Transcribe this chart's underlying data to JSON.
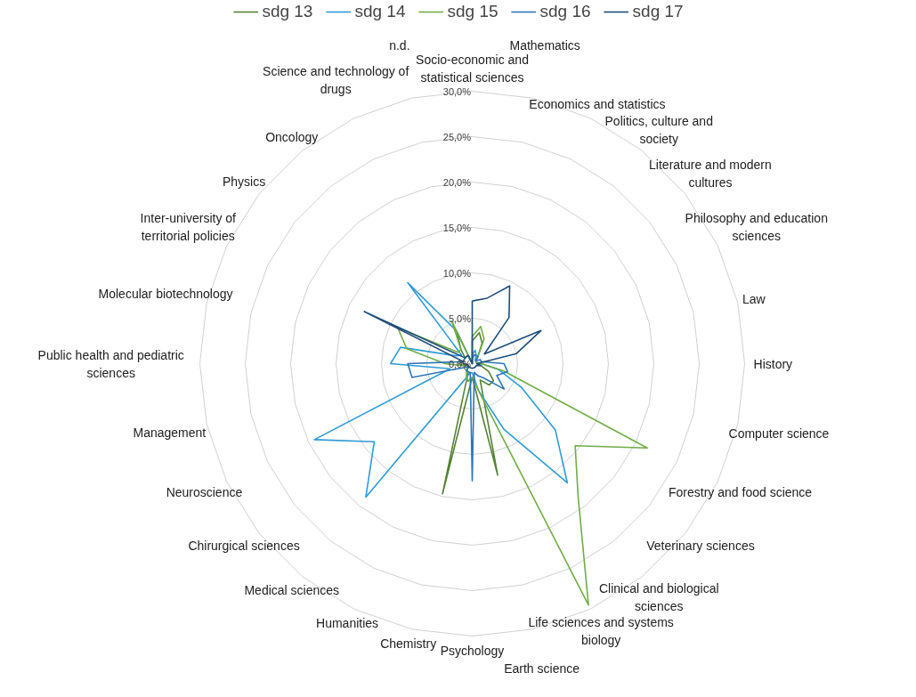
{
  "chart_data": {
    "type": "radar",
    "categories": [
      "Socio-economic and statistical sciences",
      "Mathematics",
      "Economics and statistics",
      "Politics, culture and society",
      "Literature and modern cultures",
      "Philosophy and education sciences",
      "Law",
      "History",
      "Computer science",
      "Forestry and food science",
      "Veterinary sciences",
      "Clinical and biological sciences",
      "Life sciences and systems biology",
      "Earth science",
      "Psychology",
      "Chemistry",
      "Humanities",
      "Medical sciences",
      "Chirurgical sciences",
      "Neuroscience",
      "Management",
      "Public health and pediatric sciences",
      "Molecular biotechnology",
      "Inter-university of territorial policies",
      "Physics",
      "Oncology",
      "Science and technology of drugs",
      "n.d."
    ],
    "series": [
      {
        "name": "sdg 13",
        "color": "#548235",
        "values": [
          2.5,
          3.5,
          2.5,
          1.0,
          0.5,
          0.5,
          0.5,
          0.5,
          1.0,
          2.0,
          3.0,
          3.0,
          2.0,
          12.6,
          1.5,
          14.7,
          1.0,
          1.0,
          0.5,
          0.5,
          1.0,
          1.5,
          1.0,
          1.0,
          1.0,
          2.0,
          4.0,
          0
        ]
      },
      {
        "name": "sdg 14",
        "color": "#2e9bd6",
        "values": [
          1.0,
          1.5,
          1.0,
          0.5,
          0.5,
          0.5,
          0.5,
          1.0,
          3.0,
          6.0,
          11.7,
          16.8,
          8.0,
          3.0,
          1.0,
          1.0,
          2.0,
          18.8,
          13.8,
          19.3,
          2.5,
          9.0,
          8.1,
          2.0,
          1.5,
          11.4,
          4.0,
          0
        ]
      },
      {
        "name": "sdg 15",
        "color": "#70ad47",
        "values": [
          3.0,
          4.2,
          3.0,
          1.0,
          0.5,
          0.5,
          0.5,
          1.0,
          3.5,
          21.4,
          14.5,
          18.7,
          29.5,
          3.0,
          1.5,
          2.0,
          1.5,
          1.0,
          1.0,
          1.0,
          1.0,
          3.0,
          7.4,
          9.1,
          2.0,
          2.0,
          5.2,
          0
        ]
      },
      {
        "name": "sdg 16",
        "color": "#2e75b6",
        "values": [
          0.5,
          1.0,
          1.0,
          1.0,
          0.5,
          1.0,
          1.0,
          3.5,
          4.0,
          3.0,
          4.5,
          2.0,
          1.5,
          1.0,
          12.9,
          1.0,
          1.0,
          1.0,
          0.5,
          1.0,
          6.8,
          7.1,
          1.0,
          1.0,
          1.0,
          1.0,
          1.0,
          0
        ]
      },
      {
        "name": "sdg 17",
        "color": "#1f4e79",
        "values": [
          6.9,
          7.4,
          9.5,
          6.5,
          1.7,
          8.4,
          5.0,
          0.5,
          1.0,
          0.5,
          0.5,
          0.5,
          0.5,
          0.5,
          0.5,
          0.5,
          0.5,
          0.5,
          0.5,
          0.5,
          0.5,
          1.0,
          1.0,
          13.2,
          1.0,
          1.0,
          1.0,
          0
        ]
      }
    ],
    "ylim": [
      0,
      30
    ],
    "yticks": [
      {
        "value": 0,
        "label": "0,0%"
      },
      {
        "value": 5,
        "label": "5,0%"
      },
      {
        "value": 10,
        "label": "10,0%"
      },
      {
        "value": 15,
        "label": "15,0%"
      },
      {
        "value": 20,
        "label": "20,0%"
      },
      {
        "value": 25,
        "label": "25,0%"
      },
      {
        "value": 30,
        "label": "30,0%"
      }
    ],
    "grid": true,
    "legend": "top"
  }
}
